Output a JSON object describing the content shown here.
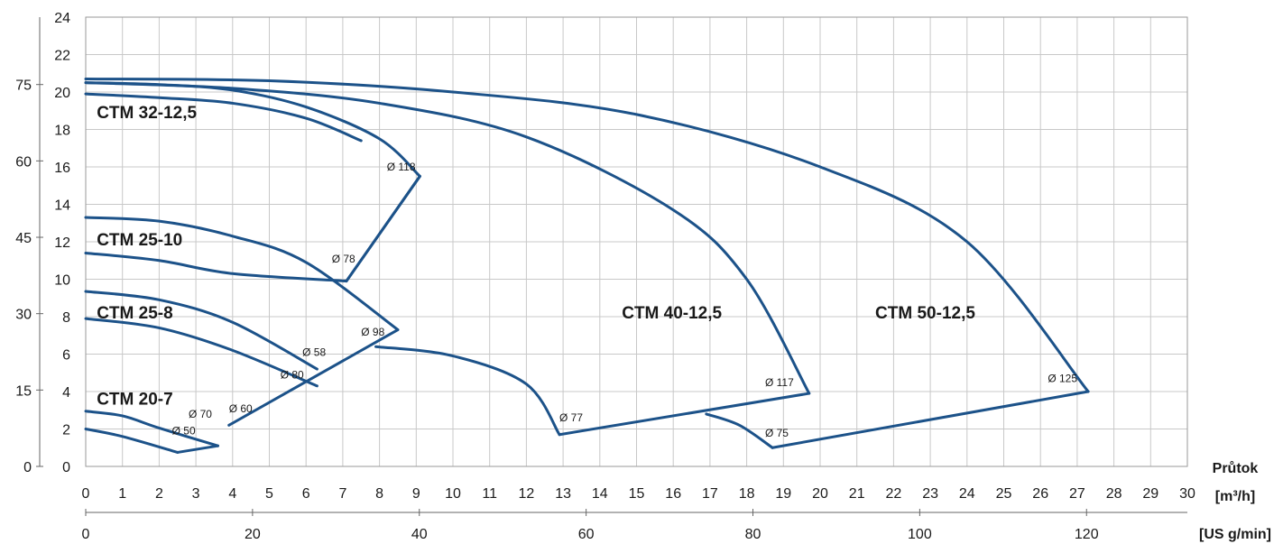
{
  "chart_data": {
    "type": "line",
    "axes": {
      "x_primary": {
        "ticks": [
          "0",
          "1",
          "2",
          "3",
          "4",
          "5",
          "6",
          "7",
          "8",
          "9",
          "10",
          "11",
          "12",
          "13",
          "14",
          "15",
          "16",
          "17",
          "18",
          "19",
          "20",
          "21",
          "22",
          "23",
          "24",
          "25",
          "26",
          "27",
          "28",
          "29",
          "30"
        ],
        "range": [
          0,
          30
        ],
        "label_top": "Průtok",
        "label_unit": "[m³/h]"
      },
      "x_secondary": {
        "ticks": [
          "0",
          "20",
          "40",
          "60",
          "80",
          "100",
          "120"
        ],
        "unit": "[US g/min]"
      },
      "y_primary": {
        "ticks": [
          "0",
          "2",
          "4",
          "6",
          "8",
          "10",
          "12",
          "14",
          "16",
          "18",
          "20",
          "22",
          "24"
        ],
        "range": [
          0,
          24
        ]
      },
      "y_secondary": {
        "ticks": [
          "0",
          "15",
          "30",
          "45",
          "60",
          "75"
        ]
      },
      "grid": true
    },
    "series": [
      {
        "name": "CTM 20-7",
        "upper": [
          [
            0,
            2.95
          ],
          [
            1,
            2.7
          ],
          [
            2,
            2.05
          ],
          [
            3.6,
            1.1
          ]
        ],
        "lower": [
          [
            0,
            2.0
          ],
          [
            1,
            1.6
          ],
          [
            2.5,
            0.75
          ]
        ],
        "end_line": [
          [
            2.5,
            0.75
          ],
          [
            3.6,
            1.1
          ]
        ],
        "diameters": [
          "Ø 70",
          "Ø 50"
        ]
      },
      {
        "name": "CTM 25-8",
        "upper": [
          [
            0,
            9.35
          ],
          [
            2,
            8.9
          ],
          [
            4,
            7.7
          ],
          [
            6.3,
            5.2
          ]
        ],
        "lower": [
          [
            0,
            7.9
          ],
          [
            2,
            7.4
          ],
          [
            4,
            6.2
          ],
          [
            6.3,
            4.3
          ]
        ],
        "end_line": [
          [
            3.9,
            2.2
          ],
          [
            8.5,
            7.3
          ]
        ],
        "diameters": [
          "Ø 80",
          "Ø 60",
          "Ø 98",
          "Ø 58"
        ]
      },
      {
        "name": "CTM 25-10",
        "upper": [
          [
            0,
            13.3
          ],
          [
            2,
            13.1
          ],
          [
            4,
            12.3
          ],
          [
            6,
            10.9
          ],
          [
            8.5,
            7.3
          ]
        ],
        "lower": [
          [
            0,
            11.4
          ],
          [
            2,
            11.0
          ],
          [
            4,
            10.3
          ],
          [
            7.1,
            9.9
          ]
        ],
        "end_line": [
          [
            7.1,
            9.9
          ],
          [
            9.1,
            15.5
          ]
        ],
        "diameters": [
          "Ø 78"
        ]
      },
      {
        "name": "CTM 32-12,5",
        "upper": [
          [
            0,
            20.5
          ],
          [
            2,
            20.4
          ],
          [
            4,
            20.1
          ],
          [
            6,
            19.2
          ],
          [
            8,
            17.5
          ],
          [
            9.1,
            15.5
          ]
        ],
        "lower": [
          [
            0,
            19.9
          ],
          [
            2,
            19.7
          ],
          [
            4,
            19.4
          ],
          [
            6,
            18.6
          ],
          [
            7.5,
            17.4
          ]
        ],
        "end_line": [
          [
            7.1,
            9.9
          ],
          [
            9.1,
            15.5
          ]
        ],
        "diameters": [
          "Ø 118"
        ]
      },
      {
        "name": "CTM 40-12,5",
        "upper": [
          [
            0,
            20.5
          ],
          [
            4,
            20.2
          ],
          [
            8,
            19.4
          ],
          [
            12,
            17.6
          ],
          [
            16,
            13.7
          ],
          [
            18,
            10.0
          ],
          [
            19.7,
            3.9
          ]
        ],
        "lower": [
          [
            7.9,
            6.4
          ],
          [
            10,
            5.9
          ],
          [
            12,
            4.4
          ],
          [
            12.9,
            1.7
          ]
        ],
        "end_line": [
          [
            12.9,
            1.7
          ],
          [
            19.7,
            3.9
          ]
        ],
        "diameters": [
          "Ø 117",
          "Ø 77"
        ]
      },
      {
        "name": "CTM 50-12,5",
        "upper": [
          [
            0,
            20.7
          ],
          [
            5,
            20.6
          ],
          [
            10,
            20.0
          ],
          [
            15,
            18.8
          ],
          [
            20,
            16.0
          ],
          [
            24,
            12.0
          ],
          [
            27.3,
            4.0
          ]
        ],
        "lower": [
          [
            16.9,
            2.8
          ],
          [
            17.8,
            2.2
          ],
          [
            18.7,
            1.0
          ]
        ],
        "end_line": [
          [
            18.7,
            1.0
          ],
          [
            27.3,
            4.0
          ]
        ],
        "diameters": [
          "Ø 125",
          "Ø 75"
        ]
      }
    ]
  },
  "labels": {
    "series": [
      {
        "text": "CTM 32-12,5",
        "x": 0.3,
        "y": 18.6
      },
      {
        "text": "CTM 25-10",
        "x": 0.3,
        "y": 11.8
      },
      {
        "text": "CTM 25-8",
        "x": 0.3,
        "y": 7.9
      },
      {
        "text": "CTM 20-7",
        "x": 0.3,
        "y": 3.3
      },
      {
        "text": "CTM 40-12,5",
        "x": 14.6,
        "y": 7.9
      },
      {
        "text": "CTM 50-12,5",
        "x": 21.5,
        "y": 7.9
      }
    ],
    "diameters": [
      {
        "text": "Ø 118",
        "x": 8.2,
        "y": 15.8
      },
      {
        "text": "Ø 78",
        "x": 6.7,
        "y": 10.9
      },
      {
        "text": "Ø 98",
        "x": 7.5,
        "y": 7.0
      },
      {
        "text": "Ø 58",
        "x": 5.9,
        "y": 5.9
      },
      {
        "text": "Ø 80",
        "x": 5.3,
        "y": 4.7
      },
      {
        "text": "Ø 70",
        "x": 2.8,
        "y": 2.6
      },
      {
        "text": "Ø 60",
        "x": 3.9,
        "y": 2.9
      },
      {
        "text": "Ø 50",
        "x": 2.35,
        "y": 1.7
      },
      {
        "text": "Ø 77",
        "x": 12.9,
        "y": 2.4
      },
      {
        "text": "Ø 117",
        "x": 18.5,
        "y": 4.3
      },
      {
        "text": "Ø 75",
        "x": 18.5,
        "y": 1.6
      },
      {
        "text": "Ø 125",
        "x": 26.2,
        "y": 4.5
      }
    ]
  }
}
